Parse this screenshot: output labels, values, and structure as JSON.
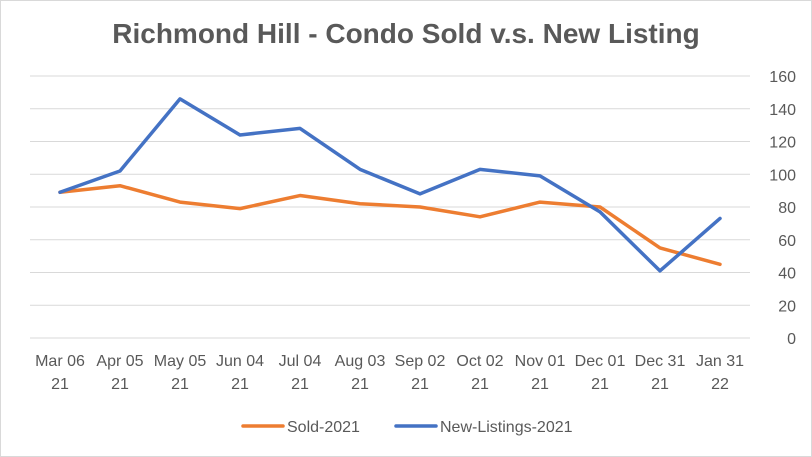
{
  "chart_data": {
    "type": "line",
    "title": "Richmond Hill - Condo Sold v.s. New Listing",
    "categories": [
      [
        "Mar 06",
        "21"
      ],
      [
        "Apr 05",
        "21"
      ],
      [
        "May 05",
        "21"
      ],
      [
        "Jun 04",
        "21"
      ],
      [
        "Jul 04",
        "21"
      ],
      [
        "Aug 03",
        "21"
      ],
      [
        "Sep 02",
        "21"
      ],
      [
        "Oct 02",
        "21"
      ],
      [
        "Nov 01",
        "21"
      ],
      [
        "Dec 01",
        "21"
      ],
      [
        "Dec 31",
        "21"
      ],
      [
        "Jan 31",
        "22"
      ]
    ],
    "series": [
      {
        "name": "Sold-2021",
        "color": "#ED7D31",
        "values": [
          89,
          93,
          83,
          79,
          87,
          82,
          80,
          74,
          83,
          80,
          55,
          45
        ]
      },
      {
        "name": "New-Listings-2021",
        "color": "#4472C4",
        "values": [
          89,
          102,
          146,
          124,
          128,
          103,
          88,
          103,
          99,
          77,
          41,
          73
        ]
      }
    ],
    "ylim": [
      0,
      160
    ],
    "yticks": [
      "0",
      "20",
      "40",
      "60",
      "80",
      "100",
      "120",
      "140",
      "160"
    ],
    "y_axis_side": "right",
    "grid": true,
    "legend_position": "bottom",
    "xlabel": "",
    "ylabel": ""
  }
}
